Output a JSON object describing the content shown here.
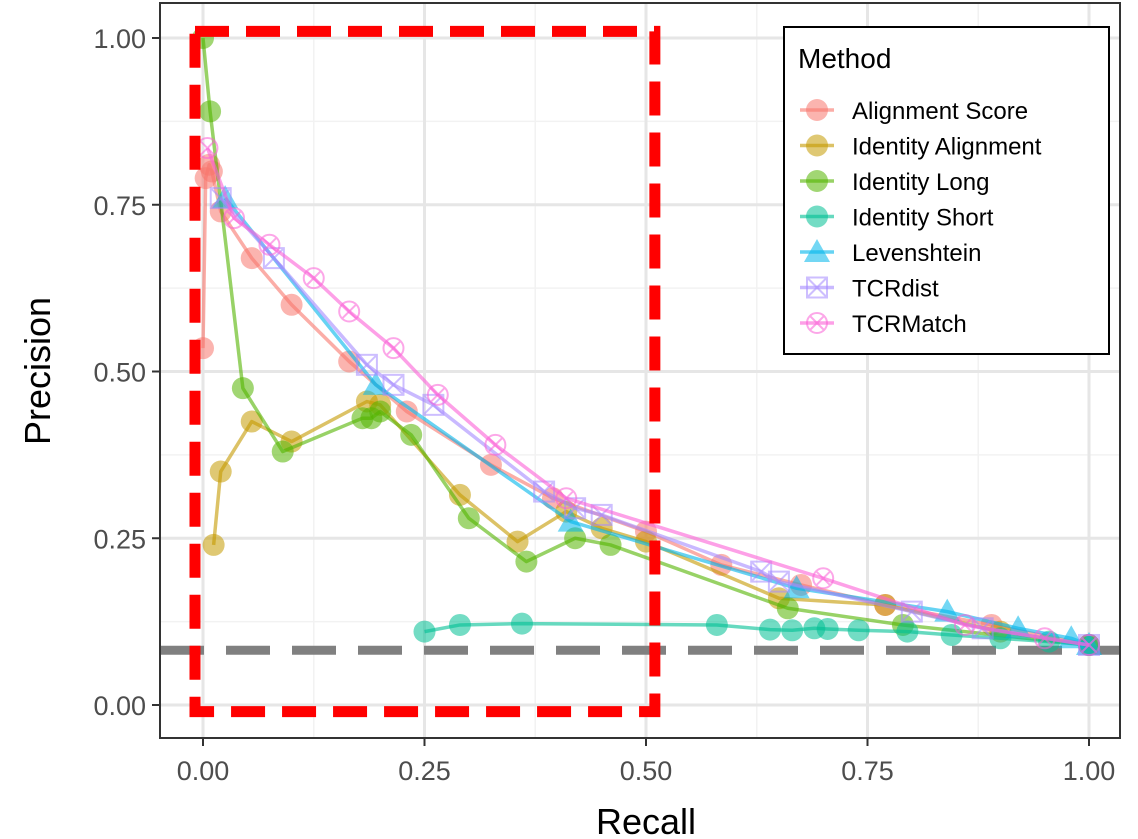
{
  "chart_data": {
    "type": "line",
    "xlabel": "Recall",
    "ylabel": "Precision",
    "xlim": [
      -0.05,
      1.05
    ],
    "ylim": [
      -0.05,
      1.05
    ],
    "grid": true,
    "legend_title": "Method",
    "legend_position": "top-right",
    "x_ticks": [
      "0.00",
      "0.25",
      "0.50",
      "0.75",
      "1.00"
    ],
    "y_ticks": [
      "0.00",
      "0.25",
      "0.50",
      "0.75",
      "1.00"
    ],
    "baseline": 0.082,
    "highlight_box": {
      "x": [
        0.0,
        0.51
      ],
      "y": [
        -0.01,
        1.01
      ],
      "color": "#ff0000"
    },
    "series": [
      {
        "name": "Alignment Score",
        "color": "#F8766D",
        "marker": "circle",
        "x": [
          0.0,
          0.003,
          0.007,
          0.01,
          0.02,
          0.055,
          0.1,
          0.165,
          0.23,
          0.325,
          0.395,
          0.5,
          0.585,
          0.675,
          0.77,
          0.89,
          1.0
        ],
        "y": [
          0.535,
          0.79,
          0.81,
          0.8,
          0.74,
          0.67,
          0.6,
          0.515,
          0.44,
          0.36,
          0.31,
          0.26,
          0.21,
          0.18,
          0.15,
          0.12,
          0.09
        ]
      },
      {
        "name": "Identity Alignment",
        "color": "#C49A00",
        "marker": "circle",
        "x": [
          0.012,
          0.02,
          0.055,
          0.1,
          0.185,
          0.2,
          0.29,
          0.355,
          0.41,
          0.45,
          0.5,
          0.65,
          0.77,
          0.9,
          1.0
        ],
        "y": [
          0.24,
          0.35,
          0.425,
          0.395,
          0.455,
          0.45,
          0.315,
          0.245,
          0.29,
          0.265,
          0.245,
          0.16,
          0.15,
          0.11,
          0.09
        ]
      },
      {
        "name": "Identity Long",
        "color": "#53B400",
        "marker": "circle",
        "x": [
          0.0,
          0.008,
          0.045,
          0.09,
          0.18,
          0.19,
          0.2,
          0.235,
          0.3,
          0.365,
          0.42,
          0.46,
          0.66,
          0.79,
          1.0
        ],
        "y": [
          1.0,
          0.89,
          0.475,
          0.38,
          0.43,
          0.43,
          0.44,
          0.405,
          0.28,
          0.215,
          0.25,
          0.24,
          0.145,
          0.12,
          0.09
        ]
      },
      {
        "name": "Identity Short",
        "color": "#00C094",
        "marker": "circle",
        "x": [
          0.25,
          0.29,
          0.36,
          0.58,
          0.64,
          0.665,
          0.69,
          0.705,
          0.74,
          0.795,
          0.845,
          0.9,
          0.955,
          1.0
        ],
        "y": [
          0.11,
          0.12,
          0.122,
          0.12,
          0.113,
          0.112,
          0.115,
          0.114,
          0.112,
          0.11,
          0.105,
          0.1,
          0.095,
          0.09
        ]
      },
      {
        "name": "Levenshtein",
        "color": "#00B6EB",
        "marker": "triangle",
        "x": [
          0.025,
          0.195,
          0.415,
          0.67,
          0.84,
          0.92,
          0.98,
          1.0
        ],
        "y": [
          0.76,
          0.48,
          0.275,
          0.175,
          0.14,
          0.115,
          0.1,
          0.09
        ]
      },
      {
        "name": "TCRdist",
        "color": "#A58AFF",
        "marker": "square-cross",
        "x": [
          0.02,
          0.08,
          0.185,
          0.215,
          0.26,
          0.385,
          0.42,
          0.45,
          0.63,
          0.65,
          0.8,
          0.88,
          1.0
        ],
        "y": [
          0.76,
          0.67,
          0.51,
          0.48,
          0.45,
          0.32,
          0.295,
          0.285,
          0.2,
          0.185,
          0.14,
          0.115,
          0.09
        ]
      },
      {
        "name": "TCRMatch",
        "color": "#FB61D7",
        "marker": "circle-cross",
        "x": [
          0.005,
          0.035,
          0.075,
          0.125,
          0.165,
          0.215,
          0.265,
          0.33,
          0.41,
          0.7,
          0.86,
          0.95,
          1.0
        ],
        "y": [
          0.835,
          0.73,
          0.69,
          0.64,
          0.59,
          0.535,
          0.465,
          0.39,
          0.31,
          0.19,
          0.12,
          0.1,
          0.09
        ]
      }
    ]
  }
}
